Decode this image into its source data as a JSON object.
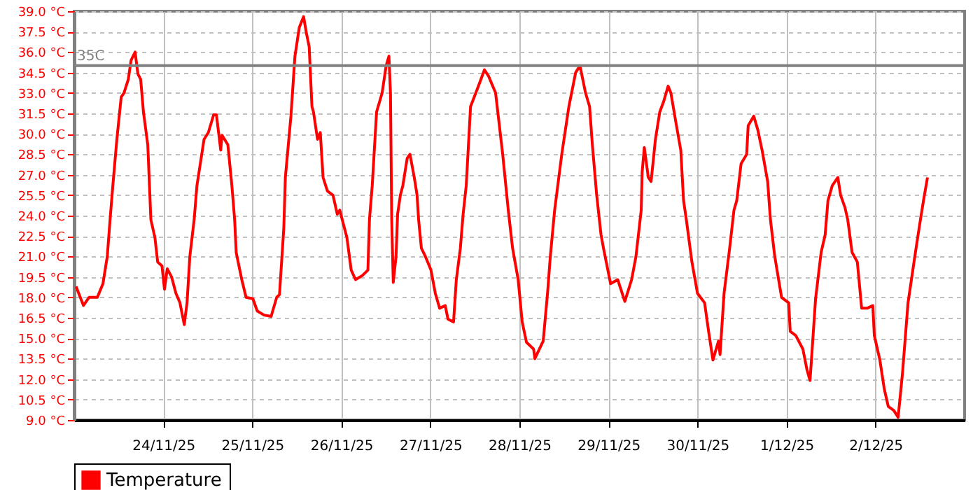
{
  "chart_data": {
    "type": "line",
    "x": [
      "--11-23T00:30",
      "--11-23T02:30",
      "--11-23T04:00",
      "--11-23T06:15",
      "--11-23T07:45",
      "--11-23T08:55",
      "--11-23T09:40",
      "--11-23T10:25",
      "--11-23T11:30",
      "--11-23T12:40",
      "--11-23T13:25",
      "--11-23T14:35",
      "--11-23T15:20",
      "--11-23T16:25",
      "--11-23T17:10",
      "--11-23T17:55",
      "--11-23T18:40",
      "--11-23T19:50",
      "--11-23T20:40",
      "--11-23T21:45",
      "--11-23T22:30",
      "--11-23T23:40",
      "--11-24T00:20",
      "--11-24T01:05",
      "--11-24T02:15",
      "--11-24T03:25",
      "--11-24T04:30",
      "--11-24T05:40",
      "--11-24T06:25",
      "--11-24T07:10",
      "--11-24T08:20",
      "--11-24T09:05",
      "--11-24T11:00",
      "--11-24T12:10",
      "--11-24T13:35",
      "--11-24T14:20",
      "--11-24T15:30",
      "--11-24T15:50",
      "--11-24T17:25",
      "--11-24T18:30",
      "--11-24T19:15",
      "--11-24T19:40",
      "--11-24T21:10",
      "--11-24T22:20",
      "--11-25T00:10",
      "--11-25T01:20",
      "--11-25T03:10",
      "--11-25T05:05",
      "--11-25T06:35",
      "--11-25T07:20",
      "--11-25T08:30",
      "--11-25T08:55",
      "--11-25T10:25",
      "--11-25T11:30",
      "--11-25T12:40",
      "--11-25T13:50",
      "--11-25T14:35",
      "--11-25T15:20",
      "--11-25T16:05",
      "--11-25T16:30",
      "--11-25T17:35",
      "--11-25T18:20",
      "--11-25T19:05",
      "--11-25T20:15",
      "--11-25T21:45",
      "--11-25T22:55",
      "--11-25T23:35",
      "--11-26T01:30",
      "--11-26T02:40",
      "--11-26T03:50",
      "--11-26T05:40",
      "--11-26T07:10",
      "--11-26T07:35",
      "--11-26T08:20",
      "--11-26T09:30",
      "--11-26T11:00",
      "--11-26T12:05",
      "--11-26T12:50",
      "--11-26T13:15",
      "--11-26T13:35",
      "--11-26T14:00",
      "--11-26T14:45",
      "--11-26T15:10",
      "--11-26T15:55",
      "--11-26T16:35",
      "--11-26T17:45",
      "--11-26T18:30",
      "--11-26T19:40",
      "--11-26T20:25",
      "--11-26T20:50",
      "--11-26T21:35",
      "--11-26T22:40",
      "--11-27T00:10",
      "--11-27T01:20",
      "--11-27T02:30",
      "--11-27T04:00",
      "--11-27T04:45",
      "--11-27T06:15",
      "--11-27T07:00",
      "--11-27T08:05",
      "--11-27T08:50",
      "--11-27T09:40",
      "--11-27T10:50",
      "--11-27T12:40",
      "--11-27T14:35",
      "--11-27T15:45",
      "--11-27T17:35",
      "--11-27T19:30",
      "--11-27T21:00",
      "--11-27T22:10",
      "--11-27T23:40",
      "--11-28T00:45",
      "--11-28T01:55",
      "--11-28T03:50",
      "--11-28T04:10",
      "--11-28T06:25",
      "--11-28T07:35",
      "--11-28T08:20",
      "--11-28T09:30",
      "--11-28T11:25",
      "--11-28T13:20",
      "--11-28T15:10",
      "--11-28T16:20",
      "--11-28T17:50",
      "--11-28T18:55",
      "--11-28T19:40",
      "--11-28T20:50",
      "--11-28T22:00",
      "--11-28T22:40",
      "--11-29T00:35",
      "--11-29T02:30",
      "--11-29T04:25",
      "--11-29T06:15",
      "--11-29T07:25",
      "--11-29T08:50",
      "--11-29T09:05",
      "--11-29T09:40",
      "--11-29T10:45",
      "--11-29T11:30",
      "--11-29T12:40",
      "--11-29T13:50",
      "--11-29T14:55",
      "--11-29T16:05",
      "--11-29T16:50",
      "--11-29T18:20",
      "--11-29T19:30",
      "--11-29T20:15",
      "--11-29T21:00",
      "--11-29T22:30",
      "--11-30T00:00",
      "--11-30T01:55",
      "--11-30T03:00",
      "--11-30T04:10",
      "--11-30T05:40",
      "--11-30T06:05",
      "--11-30T07:10",
      "--11-30T08:40",
      "--11-30T09:50",
      "--11-30T10:35",
      "--11-30T11:45",
      "--11-30T13:15",
      "--11-30T13:40",
      "--11-30T15:10",
      "--11-30T16:15",
      "--11-30T17:25",
      "--11-30T18:55",
      "--11-30T19:40",
      "--11-30T20:50",
      "--11-30T22:40",
      "--12-01T00:35",
      "--12-01T01:00",
      "--12-01T02:30",
      "--12-01T04:25",
      "--12-01T05:30",
      "--12-01T06:20",
      "--12-01T06:40",
      "--12-01T07:50",
      "--12-01T09:20",
      "--12-01T10:25",
      "--12-01T11:10",
      "--12-01T12:20",
      "--12-01T13:50",
      "--12-01T14:35",
      "--12-01T15:45",
      "--12-01T16:30",
      "--12-01T17:40",
      "--12-01T19:05",
      "--12-01T20:15",
      "--12-01T21:45",
      "--12-01T23:15",
      "--12-01T23:40",
      "--12-02T01:10",
      "--12-02T02:20",
      "--12-02T03:25",
      "--12-02T04:55",
      "--12-02T06:05",
      "--12-02T07:15",
      "--12-02T08:45",
      "--12-02T10:35",
      "--12-02T11:45",
      "--12-02T12:55",
      "--12-02T14:00"
    ],
    "series": [
      {
        "name": "Temperature",
        "color": "#ff0000",
        "values": [
          18.8,
          17.4,
          18.0,
          18.0,
          19.0,
          21.0,
          23.7,
          26.2,
          29.6,
          32.7,
          33.0,
          34.0,
          35.4,
          36.0,
          34.4,
          34.0,
          31.6,
          29.2,
          23.7,
          22.4,
          20.6,
          20.3,
          18.6,
          20.1,
          19.5,
          18.3,
          17.6,
          16.0,
          17.6,
          21.0,
          23.7,
          26.2,
          29.6,
          30.1,
          31.4,
          31.4,
          28.8,
          29.9,
          29.2,
          26.2,
          23.7,
          21.3,
          19.3,
          18.0,
          17.9,
          17.0,
          16.7,
          16.6,
          18.0,
          18.2,
          23.1,
          26.8,
          31.3,
          35.7,
          37.8,
          38.6,
          37.4,
          36.4,
          32.0,
          31.6,
          29.6,
          30.1,
          26.8,
          25.8,
          25.5,
          24.1,
          24.4,
          22.4,
          20.0,
          19.3,
          19.6,
          20.0,
          23.7,
          26.2,
          31.6,
          33.0,
          35.0,
          35.7,
          33.0,
          23.7,
          19.1,
          21.0,
          24.1,
          25.5,
          26.2,
          28.2,
          28.5,
          26.8,
          25.5,
          23.7,
          21.6,
          21.0,
          20.0,
          18.3,
          17.2,
          17.4,
          16.4,
          16.2,
          19.3,
          21.6,
          24.1,
          26.2,
          32.0,
          33.3,
          34.7,
          34.2,
          33.0,
          28.5,
          24.4,
          21.6,
          19.3,
          16.2,
          14.7,
          14.2,
          13.5,
          14.8,
          18.3,
          21.0,
          24.4,
          28.5,
          32.0,
          34.5,
          35.0,
          33.0,
          32.0,
          29.2,
          25.5,
          22.6,
          21.6,
          19.0,
          19.3,
          17.7,
          19.3,
          21.0,
          24.4,
          27.2,
          29.0,
          26.8,
          26.5,
          29.6,
          31.6,
          32.4,
          33.5,
          33.0,
          30.6,
          28.8,
          25.1,
          23.7,
          20.6,
          18.3,
          17.6,
          15.5,
          13.4,
          14.8,
          13.8,
          18.3,
          21.6,
          24.4,
          25.1,
          27.8,
          28.5,
          30.6,
          31.3,
          30.3,
          28.8,
          26.5,
          23.7,
          21.0,
          18.0,
          17.6,
          15.5,
          15.2,
          14.2,
          12.7,
          11.9,
          13.2,
          17.9,
          21.3,
          22.6,
          25.1,
          26.2,
          26.8,
          25.5,
          24.6,
          23.7,
          21.3,
          20.6,
          17.2,
          17.2,
          17.4,
          15.2,
          13.4,
          11.3,
          10.0,
          9.7,
          9.2,
          12.4,
          17.6,
          21.0,
          23.1,
          25.1,
          26.8
        ]
      }
    ],
    "xlim": [
      "--11-23T00:00",
      "--12-03T00:00"
    ],
    "xticks": [
      {
        "value": "--11-24",
        "label": "24/11/25"
      },
      {
        "value": "--11-25",
        "label": "25/11/25"
      },
      {
        "value": "--11-26",
        "label": "26/11/25"
      },
      {
        "value": "--11-27",
        "label": "27/11/25"
      },
      {
        "value": "--11-28",
        "label": "28/11/25"
      },
      {
        "value": "--11-29",
        "label": "29/11/25"
      },
      {
        "value": "--11-30",
        "label": "30/11/25"
      },
      {
        "value": "--12-01",
        "label": "1/12/25"
      },
      {
        "value": "--12-02",
        "label": "2/12/25"
      }
    ],
    "ylim": [
      9,
      39
    ],
    "yticks": [
      {
        "value": 9,
        "label": "9.0 °C"
      },
      {
        "value": 10.5,
        "label": "10.5 °C"
      },
      {
        "value": 12,
        "label": "12.0 °C"
      },
      {
        "value": 13.5,
        "label": "13.5 °C"
      },
      {
        "value": 15,
        "label": "15.0 °C"
      },
      {
        "value": 16.5,
        "label": "16.5 °C"
      },
      {
        "value": 18,
        "label": "18.0 °C"
      },
      {
        "value": 19.5,
        "label": "19.5 °C"
      },
      {
        "value": 21,
        "label": "21.0 °C"
      },
      {
        "value": 22.5,
        "label": "22.5 °C"
      },
      {
        "value": 24,
        "label": "24.0 °C"
      },
      {
        "value": 25.5,
        "label": "25.5 °C"
      },
      {
        "value": 27,
        "label": "27.0 °C"
      },
      {
        "value": 28.5,
        "label": "28.5 °C"
      },
      {
        "value": 30,
        "label": "30.0 °C"
      },
      {
        "value": 31.5,
        "label": "31.5 °C"
      },
      {
        "value": 33,
        "label": "33.0 °C"
      },
      {
        "value": 34.5,
        "label": "34.5 °C"
      },
      {
        "value": 36,
        "label": "36.0 °C"
      },
      {
        "value": 37.5,
        "label": "37.5 °C"
      },
      {
        "value": 39,
        "label": "39.0 °C"
      }
    ],
    "ref_lines": [
      {
        "axis": "y",
        "value": 35,
        "label": "35C",
        "color": "#808080"
      }
    ],
    "grid": true,
    "legend": "bottom"
  }
}
